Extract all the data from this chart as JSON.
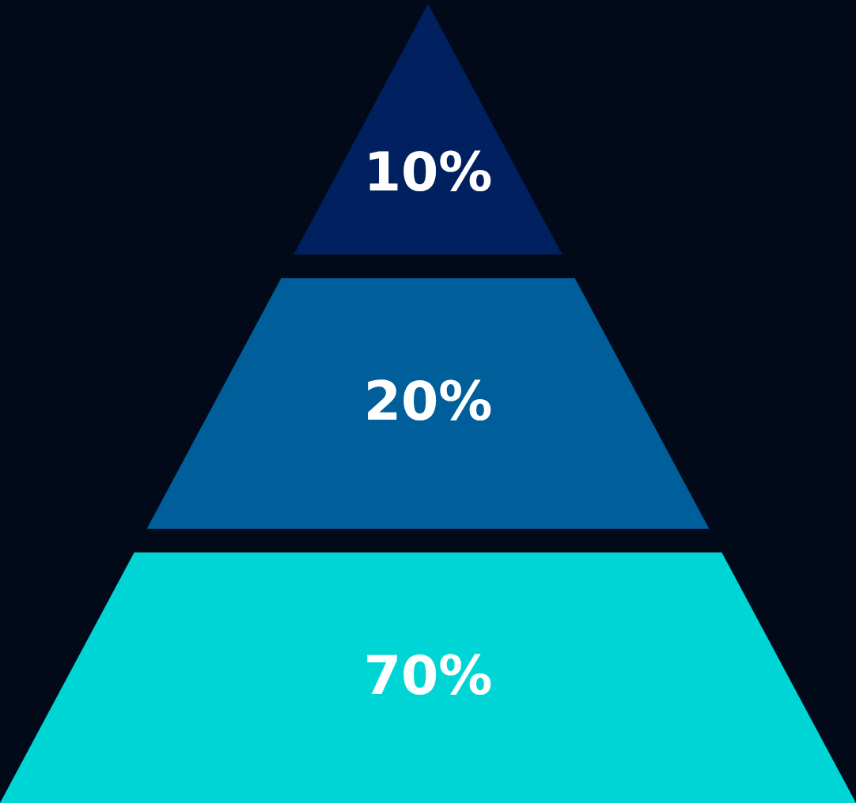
{
  "chart_data": {
    "type": "other",
    "categories": [
      null,
      null,
      null
    ],
    "values": [
      10,
      20,
      70
    ],
    "value_labels": [
      "10%",
      "20%",
      "70%"
    ],
    "colors": [
      "#002060",
      "#005f9a",
      "#00d5d5"
    ]
  }
}
